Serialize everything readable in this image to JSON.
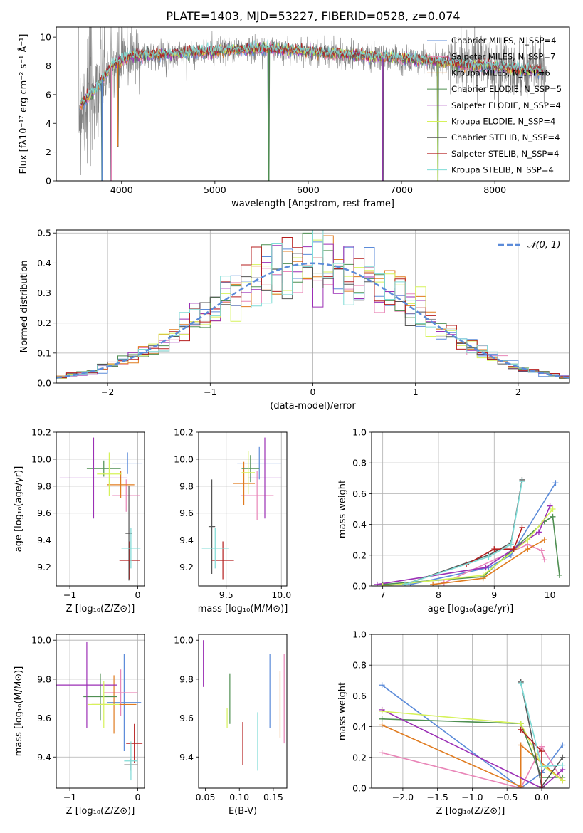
{
  "title": "PLATE=1403, MJD=53227, FIBERID=0528, z=0.074",
  "chart_data": [
    {
      "id": "spectrum",
      "type": "line",
      "xlabel": "wavelength [Angstrom, rest frame]",
      "ylabel": "Flux [fλ10⁻¹⁷ erg cm⁻² s⁻¹ Å⁻¹]",
      "xlim": [
        3300,
        8800
      ],
      "ylim": [
        0,
        10.7
      ],
      "xticks": [
        "4000",
        "5000",
        "6000",
        "7000",
        "8000"
      ],
      "yticks": [
        "0",
        "2",
        "4",
        "6",
        "8",
        "10"
      ],
      "grid": false,
      "legend_position": "right",
      "series": [
        {
          "name": "Chabrier MILES, N_SSP=4",
          "color": "#5b8bd9"
        },
        {
          "name": "Salpeter MILES, N_SSP=7",
          "color": "#e986b8"
        },
        {
          "name": "Kroupa MILES, N_SSP=6",
          "color": "#e07b1f"
        },
        {
          "name": "Chabrier ELODIE, N_SSP=5",
          "color": "#4f8f52"
        },
        {
          "name": "Salpeter ELODIE, N_SSP=4",
          "color": "#9b2fb5"
        },
        {
          "name": "Kroupa ELODIE, N_SSP=4",
          "color": "#d6f25a"
        },
        {
          "name": "Chabrier STELIB, N_SSP=4",
          "color": "#555555"
        },
        {
          "name": "Salpeter STELIB, N_SSP=4",
          "color": "#b51e1e"
        },
        {
          "name": "Kroupa STELIB, N_SSP=4",
          "color": "#7fdbd6"
        }
      ],
      "observed_color": "#808080",
      "continuum": [
        [
          3550,
          5.2
        ],
        [
          3700,
          6.2
        ],
        [
          3900,
          8.0
        ],
        [
          4100,
          8.7
        ],
        [
          4500,
          8.8
        ],
        [
          5000,
          9.0
        ],
        [
          5500,
          9.2
        ],
        [
          6000,
          9.0
        ],
        [
          6500,
          8.7
        ],
        [
          7000,
          8.5
        ],
        [
          7500,
          8.2
        ],
        [
          8000,
          7.9
        ],
        [
          8500,
          7.6
        ]
      ],
      "dips": [
        [
          3790,
          0.0
        ],
        [
          3890,
          0.0
        ],
        [
          3960,
          2.4
        ],
        [
          5577,
          0.0
        ],
        [
          6800,
          0.0
        ],
        [
          7390,
          0.0
        ]
      ]
    },
    {
      "id": "residuals",
      "type": "line",
      "xlabel": "(data-model)/error",
      "ylabel": "Normed distribution",
      "xlim": [
        -2.5,
        2.5
      ],
      "ylim": [
        0,
        0.51
      ],
      "xticks": [
        "−2",
        "−1",
        "0",
        "1",
        "2"
      ],
      "yticks": [
        "0.0",
        "0.1",
        "0.2",
        "0.3",
        "0.4",
        "0.5"
      ],
      "grid": true,
      "legend": "𝒩(0, 1)",
      "legend_position": "top-right",
      "reference_curve": "normal(0,1)",
      "bin_width": 0.1
    },
    {
      "id": "age-vs-Z",
      "type": "scatter",
      "xlabel": "Z [log₁₀(Z/Z⊙)]",
      "ylabel": "age  [log₁₀(age/yr)]",
      "xlim": [
        -1.2,
        0.1
      ],
      "ylim": [
        9.06,
        10.2
      ],
      "xticks": [
        "−1",
        "0"
      ],
      "yticks": [
        "9.2",
        "9.4",
        "9.6",
        "9.8",
        "10.0",
        "10.2"
      ],
      "grid": true,
      "points": [
        {
          "color": "#5b8bd9",
          "x": -0.15,
          "xerr": 0.22,
          "y": 9.97,
          "yerr": 0.08
        },
        {
          "color": "#e986b8",
          "x": -0.17,
          "xerr": 0.2,
          "y": 9.73,
          "yerr": 0.12
        },
        {
          "color": "#e07b1f",
          "x": -0.25,
          "xerr": 0.2,
          "y": 9.81,
          "yerr": 0.1
        },
        {
          "color": "#4f8f52",
          "x": -0.5,
          "xerr": 0.25,
          "y": 9.93,
          "yerr": 0.06
        },
        {
          "color": "#9b2fb5",
          "x": -0.65,
          "xerr": 0.5,
          "y": 9.86,
          "yerr": 0.3
        },
        {
          "color": "#d6f25a",
          "x": -0.42,
          "xerr": 0.18,
          "y": 9.89,
          "yerr": 0.16
        },
        {
          "color": "#555555",
          "x": -0.13,
          "xerr": 0.05,
          "y": 9.45,
          "yerr": 0.35
        },
        {
          "color": "#b51e1e",
          "x": -0.12,
          "xerr": 0.15,
          "y": 9.25,
          "yerr": 0.14
        },
        {
          "color": "#7fdbd6",
          "x": -0.1,
          "xerr": 0.14,
          "y": 9.34,
          "yerr": 0.15
        }
      ]
    },
    {
      "id": "age-vs-mass",
      "type": "scatter",
      "xlabel": "mass [log₁₀(M/M⊙)]",
      "ylabel": "",
      "xlim": [
        9.25,
        10.05
      ],
      "ylim": [
        9.06,
        10.2
      ],
      "xticks": [
        "9.5",
        "10.0"
      ],
      "yticks": [
        "9.2",
        "9.4",
        "9.6",
        "9.8",
        "10.0",
        "10.2"
      ],
      "grid": true,
      "points": [
        {
          "color": "#5b8bd9",
          "x": 9.8,
          "xerr": 0.2,
          "y": 9.97,
          "yerr": 0.12
        },
        {
          "color": "#e986b8",
          "x": 9.78,
          "xerr": 0.15,
          "y": 9.73,
          "yerr": 0.18
        },
        {
          "color": "#e07b1f",
          "x": 9.66,
          "xerr": 0.1,
          "y": 9.82,
          "yerr": 0.16
        },
        {
          "color": "#4f8f52",
          "x": 9.72,
          "xerr": 0.08,
          "y": 9.93,
          "yerr": 0.1
        },
        {
          "color": "#9b2fb5",
          "x": 9.85,
          "xerr": 0.15,
          "y": 9.86,
          "yerr": 0.3
        },
        {
          "color": "#d6f25a",
          "x": 9.7,
          "xerr": 0.06,
          "y": 9.9,
          "yerr": 0.16
        },
        {
          "color": "#555555",
          "x": 9.37,
          "xerr": 0.03,
          "y": 9.5,
          "yerr": 0.35
        },
        {
          "color": "#b51e1e",
          "x": 9.47,
          "xerr": 0.1,
          "y": 9.25,
          "yerr": 0.14
        },
        {
          "color": "#7fdbd6",
          "x": 9.4,
          "xerr": 0.12,
          "y": 9.34,
          "yerr": 0.15
        }
      ]
    },
    {
      "id": "weight-vs-age",
      "type": "line",
      "xlabel": "age  [log₁₀(age/yr)]",
      "ylabel": "mass weight",
      "xlim": [
        6.8,
        10.35
      ],
      "ylim": [
        0,
        1.0
      ],
      "xticks": [
        "7",
        "8",
        "9",
        "10"
      ],
      "yticks": [
        "0.0",
        "0.2",
        "0.4",
        "0.6",
        "0.8",
        "1.0"
      ],
      "grid": true,
      "series": [
        {
          "color": "#5b8bd9",
          "x": [
            7.5,
            8.9,
            9.3,
            10.1
          ],
          "y": [
            0.01,
            0.12,
            0.2,
            0.67
          ]
        },
        {
          "color": "#e986b8",
          "x": [
            8.1,
            9.6,
            9.85,
            9.9
          ],
          "y": [
            0.02,
            0.27,
            0.23,
            0.17
          ]
        },
        {
          "color": "#e07b1f",
          "x": [
            7.9,
            8.8,
            9.6,
            9.9
          ],
          "y": [
            0.01,
            0.05,
            0.24,
            0.3
          ]
        },
        {
          "color": "#4f8f52",
          "x": [
            7.0,
            8.8,
            9.9,
            10.05,
            10.17
          ],
          "y": [
            0.01,
            0.06,
            0.42,
            0.45,
            0.07
          ]
        },
        {
          "color": "#9b2fb5",
          "x": [
            6.9,
            8.85,
            9.8,
            10.0
          ],
          "y": [
            0.01,
            0.12,
            0.35,
            0.52
          ]
        },
        {
          "color": "#d6f25a",
          "x": [
            7.0,
            8.8,
            9.6,
            10.05
          ],
          "y": [
            0.0,
            0.07,
            0.3,
            0.5
          ]
        },
        {
          "color": "#555555",
          "x": [
            7.4,
            8.9,
            9.3,
            9.5
          ],
          "y": [
            0.01,
            0.2,
            0.28,
            0.69
          ]
        },
        {
          "color": "#b51e1e",
          "x": [
            8.5,
            9.0,
            9.35,
            9.5
          ],
          "y": [
            0.14,
            0.24,
            0.24,
            0.38
          ]
        },
        {
          "color": "#7fdbd6",
          "x": [
            7.4,
            8.9,
            9.3,
            9.5
          ],
          "y": [
            0.01,
            0.19,
            0.27,
            0.68
          ]
        }
      ]
    },
    {
      "id": "mass-vs-Z",
      "type": "scatter",
      "xlabel": "Z [log₁₀(Z/Z⊙)]",
      "ylabel": "mass [log₁₀(M/M⊙)]",
      "xlim": [
        -1.2,
        0.1
      ],
      "ylim": [
        9.24,
        10.03
      ],
      "xticks": [
        "−1",
        "0"
      ],
      "yticks": [
        "9.4",
        "9.6",
        "9.8",
        "10.0"
      ],
      "grid": true,
      "points": [
        {
          "color": "#5b8bd9",
          "x": -0.2,
          "xerr": 0.25,
          "y": 9.68,
          "yerr": 0.25
        },
        {
          "color": "#e986b8",
          "x": -0.25,
          "xerr": 0.25,
          "y": 9.73,
          "yerr": 0.12
        },
        {
          "color": "#e07b1f",
          "x": -0.35,
          "xerr": 0.33,
          "y": 9.67,
          "yerr": 0.15
        },
        {
          "color": "#4f8f52",
          "x": -0.55,
          "xerr": 0.25,
          "y": 9.71,
          "yerr": 0.12
        },
        {
          "color": "#9b2fb5",
          "x": -0.75,
          "xerr": 0.45,
          "y": 9.77,
          "yerr": 0.22
        },
        {
          "color": "#d6f25a",
          "x": -0.5,
          "xerr": 0.23,
          "y": 9.67,
          "yerr": 0.12
        },
        {
          "color": "#555555",
          "x": -0.1,
          "xerr": 0.1,
          "y": 9.36,
          "yerr": 0.03
        },
        {
          "color": "#b51e1e",
          "x": -0.05,
          "xerr": 0.12,
          "y": 9.47,
          "yerr": 0.1
        },
        {
          "color": "#7fdbd6",
          "x": -0.1,
          "xerr": 0.1,
          "y": 9.38,
          "yerr": 0.1
        }
      ]
    },
    {
      "id": "mass-vs-ebv",
      "type": "scatter",
      "xlabel": "E(B-V)",
      "ylabel": "",
      "xlim": [
        0.04,
        0.17
      ],
      "ylim": [
        9.24,
        10.03
      ],
      "xticks": [
        "0.05",
        "0.10",
        "0.15"
      ],
      "yticks": [
        "9.4",
        "9.6",
        "9.8",
        "10.0"
      ],
      "grid": false,
      "points": [
        {
          "color": "#9b2fb5",
          "x": 0.047,
          "xerr": 0,
          "y": 9.88,
          "yerr": 0.12
        },
        {
          "color": "#d6f25a",
          "x": 0.082,
          "xerr": 0,
          "y": 9.6,
          "yerr": 0.05
        },
        {
          "color": "#4f8f52",
          "x": 0.086,
          "xerr": 0,
          "y": 9.7,
          "yerr": 0.13
        },
        {
          "color": "#b51e1e",
          "x": 0.105,
          "xerr": 0,
          "y": 9.47,
          "yerr": 0.11
        },
        {
          "color": "#7fdbd6",
          "x": 0.127,
          "xerr": 0,
          "y": 9.48,
          "yerr": 0.15
        },
        {
          "color": "#5b8bd9",
          "x": 0.145,
          "xerr": 0,
          "y": 9.74,
          "yerr": 0.19
        },
        {
          "color": "#e07b1f",
          "x": 0.16,
          "xerr": 0,
          "y": 9.67,
          "yerr": 0.17
        },
        {
          "color": "#e986b8",
          "x": 0.166,
          "xerr": 0,
          "y": 9.7,
          "yerr": 0.23
        }
      ]
    },
    {
      "id": "weight-vs-Z",
      "type": "line",
      "xlabel": "Z [log₁₀(Z/Z⊙)]",
      "ylabel": "mass weight",
      "xlim": [
        -2.45,
        0.4
      ],
      "ylim": [
        0,
        1.0
      ],
      "xticks": [
        "−2.0",
        "−1.5",
        "−1.0",
        "−0.5",
        "0.0"
      ],
      "yticks": [
        "0.0",
        "0.2",
        "0.4",
        "0.6",
        "0.8",
        "1.0"
      ],
      "grid": true,
      "series": [
        {
          "color": "#5b8bd9",
          "x": [
            -2.3,
            -0.3,
            0.0,
            0.3
          ],
          "y": [
            0.67,
            0.0,
            0.1,
            0.28
          ]
        },
        {
          "color": "#e986b8",
          "x": [
            -2.3,
            -0.3,
            0.0,
            0.3
          ],
          "y": [
            0.23,
            0.0,
            0.27,
            0.05
          ]
        },
        {
          "color": "#e07b1f",
          "x": [
            -2.3,
            -0.3,
            -0.3,
            0.3
          ],
          "y": [
            0.41,
            0.01,
            0.28,
            0.05
          ]
        },
        {
          "color": "#4f8f52",
          "x": [
            -2.3,
            -0.3,
            0.0,
            0.3
          ],
          "y": [
            0.45,
            0.42,
            0.07,
            0.07
          ]
        },
        {
          "color": "#9b2fb5",
          "x": [
            -2.3,
            0.0,
            0.3
          ],
          "y": [
            0.51,
            0.0,
            0.12
          ]
        },
        {
          "color": "#d6f25a",
          "x": [
            -2.3,
            -0.3,
            0.0,
            0.3
          ],
          "y": [
            0.5,
            0.42,
            0.15,
            0.05
          ]
        },
        {
          "color": "#555555",
          "x": [
            -0.3,
            0.0,
            0.3
          ],
          "y": [
            0.69,
            0.01,
            0.2
          ]
        },
        {
          "color": "#b51e1e",
          "x": [
            -0.3,
            0.0,
            0.0
          ],
          "y": [
            0.38,
            0.24,
            0.0
          ]
        },
        {
          "color": "#7fdbd6",
          "x": [
            -0.3,
            0.0,
            0.3
          ],
          "y": [
            0.68,
            0.14,
            0.15
          ]
        }
      ]
    }
  ]
}
